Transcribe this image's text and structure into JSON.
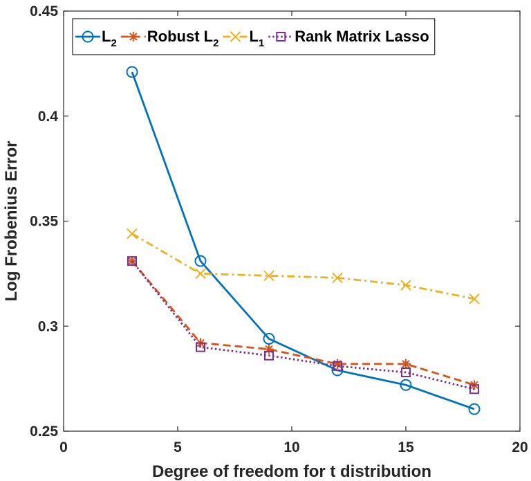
{
  "chart_data": {
    "type": "line",
    "xlabel": "Degree of freedom for t distribution",
    "ylabel": "Log Frobenius Error",
    "xlim": [
      0,
      20
    ],
    "ylim": [
      0.25,
      0.45
    ],
    "xticks": [
      0,
      5,
      10,
      15,
      20
    ],
    "xtick_labels": [
      "0",
      "5",
      "10",
      "15",
      "20"
    ],
    "yticks": [
      0.25,
      0.3,
      0.35,
      0.4,
      0.45
    ],
    "ytick_labels": [
      "0.25",
      "0.3",
      "0.35",
      "0.4",
      "0.45"
    ],
    "grid": false,
    "legend_position": "top, horizontal",
    "x": [
      3,
      6,
      9,
      12,
      15,
      18
    ],
    "series": [
      {
        "name": "L",
        "name_subscript": "2",
        "values": [
          0.421,
          0.331,
          0.294,
          0.279,
          0.272,
          0.2605
        ],
        "color": "#0072BD",
        "marker": "circle",
        "line_style": "solid"
      },
      {
        "name": "Robust L",
        "name_subscript": "2",
        "values": [
          0.331,
          0.292,
          0.289,
          0.282,
          0.282,
          0.272
        ],
        "color": "#D95319",
        "marker": "asterisk",
        "line_style": "dashed"
      },
      {
        "name": "L",
        "name_subscript": "1",
        "values": [
          0.344,
          0.325,
          0.324,
          0.323,
          0.3195,
          0.313
        ],
        "color": "#EDB120",
        "marker": "x",
        "line_style": "dashdot"
      },
      {
        "name": "Rank Matrix Lasso",
        "name_subscript": "",
        "values": [
          0.331,
          0.29,
          0.286,
          0.281,
          0.278,
          0.27
        ],
        "color": "#7E2F8E",
        "marker": "square",
        "line_style": "dotted"
      }
    ]
  }
}
